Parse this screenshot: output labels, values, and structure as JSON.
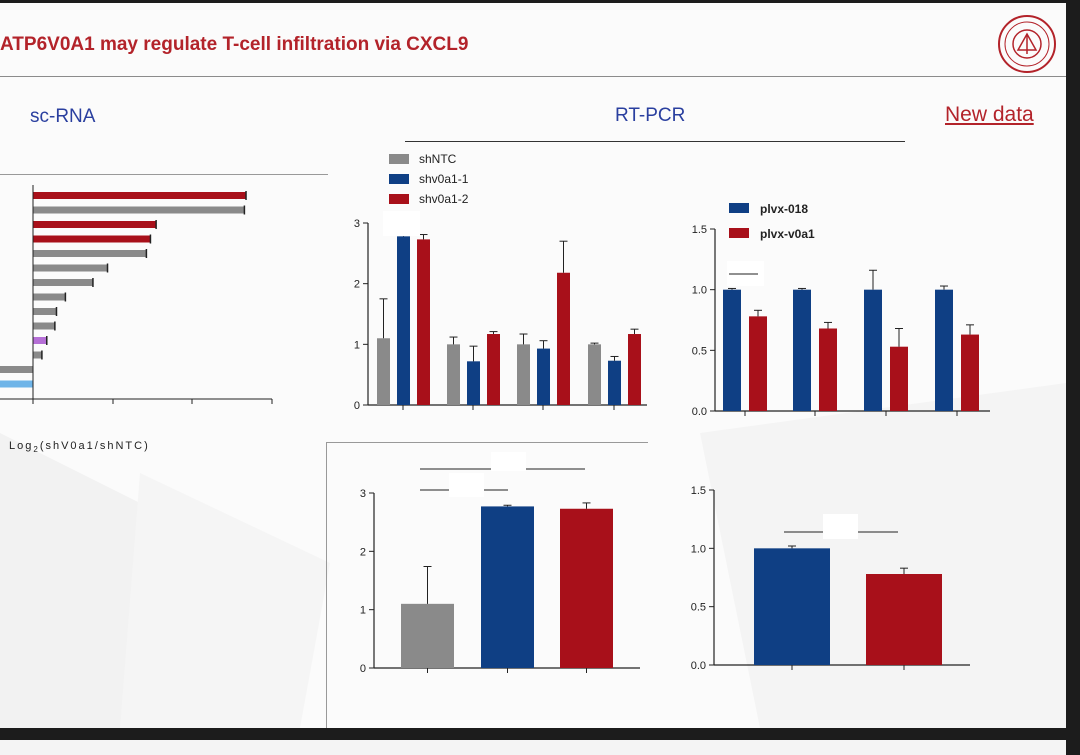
{
  "header": {
    "title": "ATP6V0A1 may regulate T-cell infiltration via CXCL9",
    "logo_icon": "university-seal-icon"
  },
  "sections": {
    "left": "sc-RNA",
    "middle": "RT-PCR",
    "right": "New data"
  },
  "colors": {
    "title": "#b3232a",
    "section": "#2a3f9f",
    "gray": "#8a8a8a",
    "blue": "#0f3f84",
    "red": "#a8101a",
    "purple": "#b56fd6",
    "lightblue": "#6eb4e8"
  },
  "chart_data": [
    {
      "id": "scrna_bars",
      "type": "bar",
      "orientation": "horizontal",
      "xlabel": "Log2(shV0a1/shNTC)",
      "values": [
        {
          "value": 2.63,
          "color": "red"
        },
        {
          "value": 2.61,
          "color": "gray"
        },
        {
          "value": 1.52,
          "color": "red"
        },
        {
          "value": 1.45,
          "color": "red"
        },
        {
          "value": 1.4,
          "color": "gray"
        },
        {
          "value": 0.92,
          "color": "gray"
        },
        {
          "value": 0.74,
          "color": "gray"
        },
        {
          "value": 0.4,
          "color": "gray"
        },
        {
          "value": 0.29,
          "color": "gray"
        },
        {
          "value": 0.27,
          "color": "gray"
        },
        {
          "value": 0.17,
          "color": "purple"
        },
        {
          "value": 0.11,
          "color": "gray"
        },
        {
          "value": -0.55,
          "color": "gray"
        },
        {
          "value": -0.55,
          "color": "lightblue"
        }
      ],
      "xlim": [
        -0.5,
        3
      ]
    },
    {
      "id": "rtpcr_sh",
      "type": "bar",
      "ylim": [
        0,
        3
      ],
      "yticks": [
        "0",
        "1",
        "2",
        "3"
      ],
      "series": [
        {
          "name": "shNTC",
          "color": "gray",
          "values": [
            1.1,
            1.0,
            1.0,
            1.0
          ],
          "errors": [
            0.65,
            0.12,
            0.17,
            0.02
          ]
        },
        {
          "name": "shv0a1-1",
          "color": "blue",
          "values": [
            2.78,
            0.72,
            0.93,
            0.73
          ],
          "errors": [
            0.02,
            0.25,
            0.13,
            0.07
          ]
        },
        {
          "name": "shv0a1-2",
          "color": "red",
          "values": [
            2.73,
            1.17,
            2.18,
            1.17
          ],
          "errors": [
            0.08,
            0.04,
            0.52,
            0.08
          ]
        }
      ]
    },
    {
      "id": "rtpcr_plvx",
      "type": "bar",
      "ylim": [
        0,
        1.5
      ],
      "yticks": [
        "0.0",
        "0.5",
        "1.0",
        "1.5"
      ],
      "series": [
        {
          "name": "plvx-018",
          "color": "blue",
          "values": [
            1.0,
            1.0,
            1.0,
            1.0
          ],
          "errors": [
            0.01,
            0.01,
            0.16,
            0.03
          ]
        },
        {
          "name": "plvx-v0a1",
          "color": "red",
          "values": [
            0.78,
            0.68,
            0.53,
            0.63
          ],
          "errors": [
            0.05,
            0.05,
            0.15,
            0.08
          ]
        }
      ]
    },
    {
      "id": "bottom_three",
      "type": "bar",
      "ylim": [
        0,
        3
      ],
      "yticks": [
        "0",
        "1",
        "2",
        "3"
      ],
      "values": [
        {
          "value": 1.1,
          "error": 0.64,
          "color": "gray"
        },
        {
          "value": 2.77,
          "error": 0.02,
          "color": "blue"
        },
        {
          "value": 2.73,
          "error": 0.1,
          "color": "red"
        }
      ]
    },
    {
      "id": "bottom_two",
      "type": "bar",
      "ylim": [
        0,
        1.5
      ],
      "yticks": [
        "0.0",
        "0.5",
        "1.0",
        "1.5"
      ],
      "values": [
        {
          "value": 1.0,
          "error": 0.02,
          "color": "blue"
        },
        {
          "value": 0.78,
          "error": 0.05,
          "color": "red"
        }
      ]
    }
  ]
}
